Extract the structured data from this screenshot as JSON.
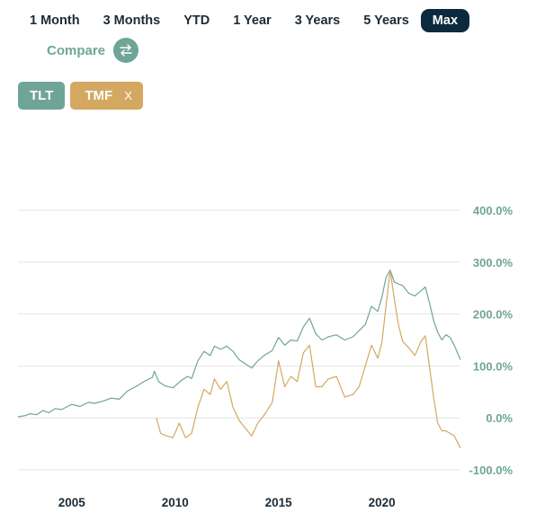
{
  "ranges": {
    "items": [
      "1 Month",
      "3 Months",
      "YTD",
      "1 Year",
      "3 Years",
      "5 Years",
      "Max"
    ],
    "selected": "Max"
  },
  "compare": {
    "label": "Compare",
    "icon": "swap-arrows-icon"
  },
  "tags": {
    "tlt": {
      "label": "TLT",
      "color": "#6fa597"
    },
    "tmf": {
      "label": "TMF",
      "remove": "X",
      "color": "#d4a861"
    }
  },
  "colors": {
    "grid": "#e4e4e4",
    "axis_label": "#6fa597",
    "year_label": "#1c2b36",
    "active_range": "#0c2a3d"
  },
  "chart_data": {
    "type": "line",
    "x_unit": "year",
    "x_ticks": [
      "2005",
      "2010",
      "2015",
      "2020"
    ],
    "y_ticks": [
      "400.0%",
      "300.0%",
      "200.0%",
      "100.0%",
      "0.0%",
      "-100.0%"
    ],
    "ylim": [
      -100,
      400
    ],
    "xlim": [
      2002.4,
      2023.8
    ],
    "grid": true,
    "series": [
      {
        "name": "TLT",
        "color": "#6fa597",
        "x": [
          2002.4,
          2002.7,
          2003.0,
          2003.3,
          2003.6,
          2003.9,
          2004.2,
          2004.5,
          2004.8,
          2005.0,
          2005.4,
          2005.8,
          2006.1,
          2006.5,
          2006.9,
          2007.3,
          2007.7,
          2008.1,
          2008.5,
          2008.9,
          2009.0,
          2009.2,
          2009.5,
          2009.9,
          2010.3,
          2010.6,
          2010.8,
          2011.1,
          2011.4,
          2011.7,
          2011.9,
          2012.2,
          2012.5,
          2012.8,
          2013.1,
          2013.4,
          2013.7,
          2014.0,
          2014.3,
          2014.7,
          2015.0,
          2015.3,
          2015.6,
          2015.9,
          2016.2,
          2016.5,
          2016.8,
          2017.1,
          2017.4,
          2017.8,
          2018.2,
          2018.6,
          2018.9,
          2019.2,
          2019.5,
          2019.8,
          2020.0,
          2020.2,
          2020.4,
          2020.6,
          2020.8,
          2021.0,
          2021.3,
          2021.6,
          2021.9,
          2022.1,
          2022.3,
          2022.5,
          2022.7,
          2022.9,
          2023.1,
          2023.3,
          2023.5,
          2023.8
        ],
        "y": [
          2,
          4,
          8,
          6,
          14,
          10,
          18,
          16,
          22,
          26,
          22,
          30,
          28,
          32,
          38,
          36,
          52,
          60,
          70,
          78,
          90,
          70,
          62,
          58,
          72,
          80,
          76,
          110,
          128,
          120,
          138,
          132,
          138,
          128,
          112,
          104,
          96,
          110,
          120,
          130,
          155,
          140,
          150,
          148,
          175,
          192,
          162,
          150,
          156,
          160,
          150,
          156,
          168,
          180,
          215,
          205,
          232,
          270,
          285,
          262,
          258,
          255,
          240,
          235,
          245,
          252,
          222,
          188,
          165,
          150,
          160,
          155,
          140,
          112
        ]
      },
      {
        "name": "TMF",
        "color": "#d4a861",
        "x": [
          2009.1,
          2009.3,
          2009.6,
          2009.9,
          2010.2,
          2010.5,
          2010.8,
          2011.1,
          2011.4,
          2011.7,
          2011.9,
          2012.2,
          2012.5,
          2012.8,
          2013.1,
          2013.4,
          2013.7,
          2014.0,
          2014.3,
          2014.7,
          2015.0,
          2015.3,
          2015.6,
          2015.9,
          2016.2,
          2016.5,
          2016.8,
          2017.1,
          2017.4,
          2017.8,
          2018.2,
          2018.6,
          2018.9,
          2019.2,
          2019.5,
          2019.8,
          2020.0,
          2020.2,
          2020.4,
          2020.6,
          2020.8,
          2021.0,
          2021.3,
          2021.6,
          2021.9,
          2022.1,
          2022.3,
          2022.5,
          2022.7,
          2022.9,
          2023.1,
          2023.3,
          2023.5,
          2023.8
        ],
        "y": [
          0,
          -30,
          -35,
          -38,
          -10,
          -38,
          -30,
          20,
          55,
          45,
          75,
          55,
          70,
          20,
          -5,
          -20,
          -35,
          -10,
          5,
          30,
          110,
          60,
          80,
          70,
          125,
          140,
          60,
          60,
          75,
          80,
          40,
          45,
          60,
          100,
          140,
          115,
          145,
          215,
          285,
          230,
          180,
          148,
          135,
          120,
          148,
          158,
          100,
          40,
          -10,
          -25,
          -25,
          -30,
          -35,
          -58
        ]
      }
    ]
  }
}
